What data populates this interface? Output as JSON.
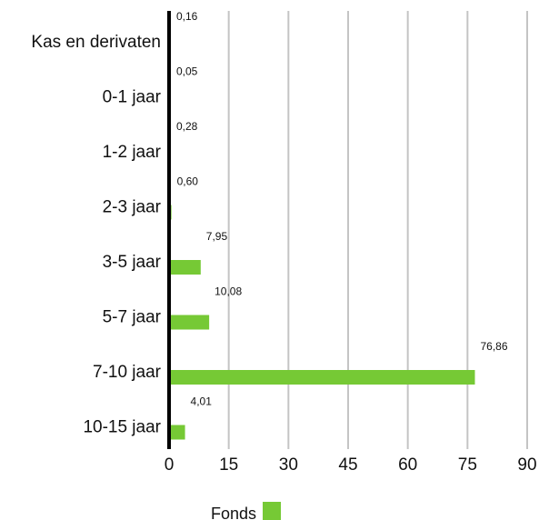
{
  "chart_data": {
    "type": "bar",
    "orientation": "horizontal",
    "categories": [
      "Kas en derivaten",
      "0-1 jaar",
      "1-2 jaar",
      "2-3 jaar",
      "3-5 jaar",
      "5-7 jaar",
      "7-10 jaar",
      "10-15 jaar"
    ],
    "series": [
      {
        "name": "Fonds",
        "values": [
          0.16,
          0.05,
          0.28,
          0.6,
          7.95,
          10.08,
          76.86,
          4.01
        ],
        "labels": [
          "0,16",
          "0,05",
          "0,28",
          "0,60",
          "7,95",
          "10,08",
          "76,86",
          "4,01"
        ],
        "color": "#76c935"
      }
    ],
    "xlim": [
      0,
      90
    ],
    "ticks": [
      0,
      15,
      30,
      45,
      60,
      75,
      90
    ],
    "tick_labels": [
      "0",
      "15",
      "30",
      "45",
      "60",
      "75",
      "90"
    ],
    "grid": true,
    "legend_position": "bottom-center",
    "colors": {
      "bar": "#76c935",
      "grid": "#c4c4c4",
      "axis": "#000000",
      "text": "#111111"
    }
  }
}
